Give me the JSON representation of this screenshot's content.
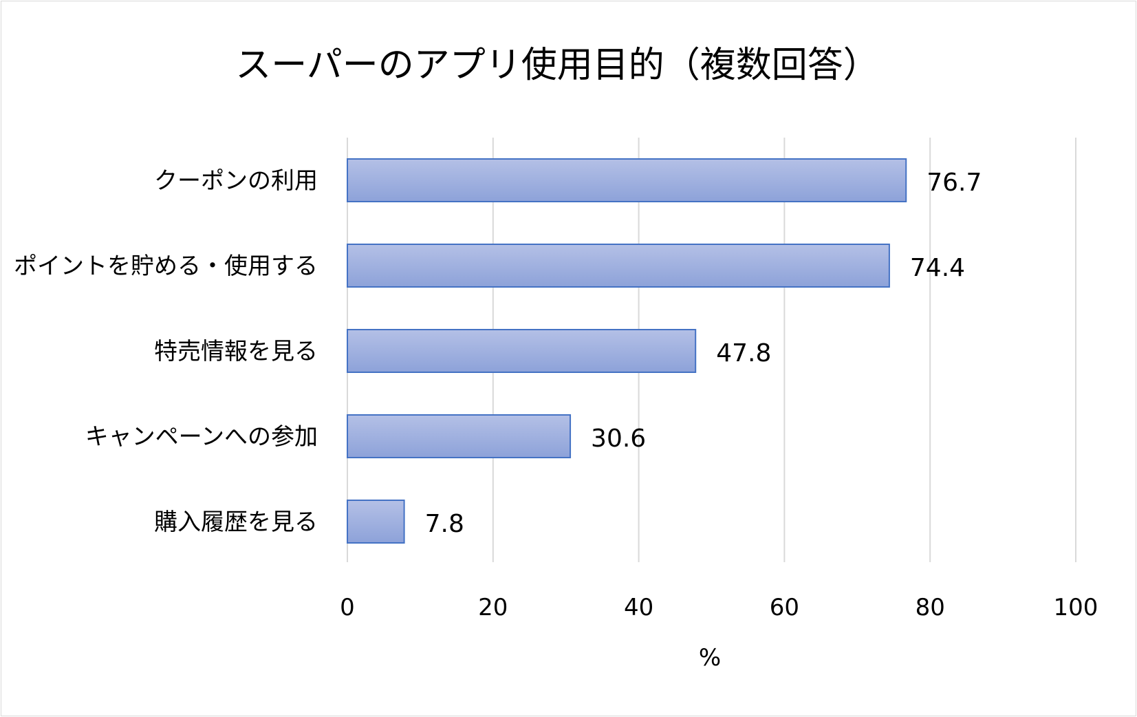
{
  "chart_data": {
    "type": "bar",
    "orientation": "horizontal",
    "title": "スーパーのアプリ使用目的（複数回答）",
    "categories": [
      "クーポンの利用",
      "ポイントを貯める・使用する",
      "特売情報を見る",
      "キャンペーンへの参加",
      "購入履歴を見る"
    ],
    "values": [
      76.7,
      74.4,
      47.8,
      30.6,
      7.8
    ],
    "data_labels": [
      "76.7",
      "74.4",
      "47.8",
      "30.6",
      "7.8"
    ],
    "xlabel": "%",
    "ylabel": "",
    "xlim": [
      0,
      100
    ],
    "x_ticks": [
      "0",
      "20",
      "40",
      "60",
      "80",
      "100"
    ],
    "grid": "vertical",
    "legend": "none",
    "colors": {
      "bar_fill_light": "#b4c0e6",
      "bar_fill_dark": "#8da2d9",
      "bar_stroke": "#4472c4",
      "gridline": "#d9d9d9",
      "border": "#d9d9d9"
    }
  }
}
